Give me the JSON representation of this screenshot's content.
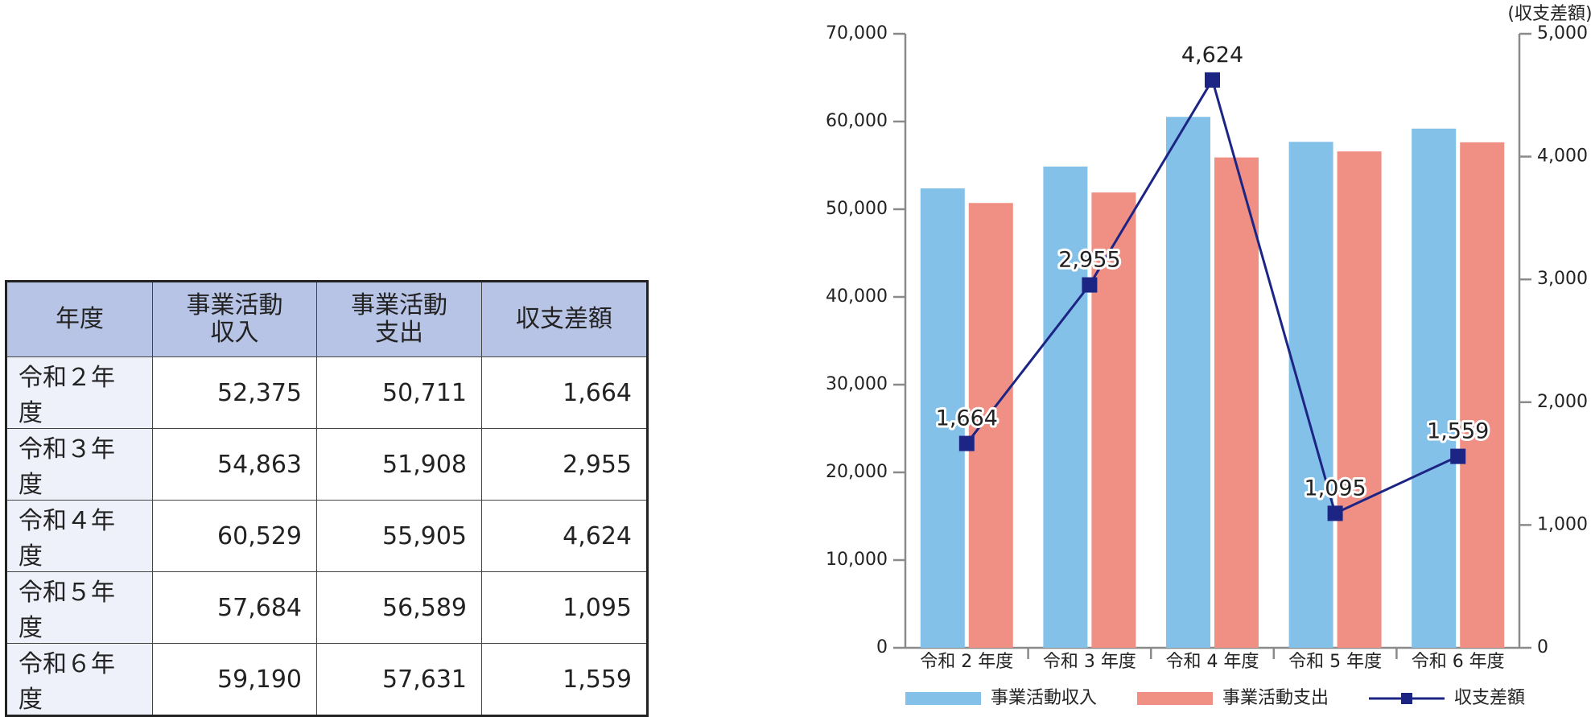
{
  "table": {
    "header": [
      [
        "年度"
      ],
      [
        "事業活動",
        "収入"
      ],
      [
        "事業活動",
        "支出"
      ],
      [
        "収支差額"
      ]
    ],
    "rows": [
      [
        "令和２年度",
        "52,375",
        "50,711",
        "1,664"
      ],
      [
        "令和３年度",
        "54,863",
        "51,908",
        "2,955"
      ],
      [
        "令和４年度",
        "60,529",
        "55,905",
        "4,624"
      ],
      [
        "令和５年度",
        "57,684",
        "56,589",
        "1,095"
      ],
      [
        "令和６年度",
        "59,190",
        "57,631",
        "1,559"
      ]
    ]
  },
  "chart_data": {
    "type": "bar",
    "y2_label": "(収支差額)",
    "categories": [
      "令和 2 年度",
      "令和 3 年度",
      "令和 4 年度",
      "令和 5 年度",
      "令和 6 年度"
    ],
    "series": [
      {
        "name": "事業活動収入",
        "color": "#84c1e9",
        "type": "bar",
        "values": [
          52375,
          54863,
          60529,
          57684,
          59190
        ]
      },
      {
        "name": "事業活動支出",
        "color": "#f09084",
        "type": "bar",
        "values": [
          50711,
          51908,
          55905,
          56589,
          57631
        ]
      },
      {
        "name": "収支差額",
        "color": "#1c2584",
        "type": "line",
        "axis": "y2",
        "values": [
          1664,
          2955,
          4624,
          1095,
          1559
        ],
        "value_labels": [
          "1,664",
          "2,955",
          "4,624",
          "1,095",
          "1,559"
        ]
      }
    ],
    "ylim": [
      0,
      70000
    ],
    "yticks": [
      0,
      {
        "value": 10000,
        "label": "10,000"
      },
      {
        "value": 20000,
        "label": "20,000"
      },
      {
        "value": 30000,
        "label": "30,000"
      },
      {
        "value": 40000,
        "label": "40,000"
      },
      {
        "value": 50000,
        "label": "50,000"
      },
      {
        "value": 60000,
        "label": "60,000"
      },
      {
        "value": 70000,
        "label": "70,000"
      }
    ],
    "y2lim": [
      0,
      5000
    ],
    "y2ticks": [
      0,
      {
        "value": 1000,
        "label": "1,000"
      },
      {
        "value": 2000,
        "label": "2,000"
      },
      {
        "value": 3000,
        "label": "3,000"
      },
      {
        "value": 4000,
        "label": "4,000"
      },
      {
        "value": 5000,
        "label": "5,000"
      }
    ],
    "legend": "bottom",
    "grid": false
  }
}
